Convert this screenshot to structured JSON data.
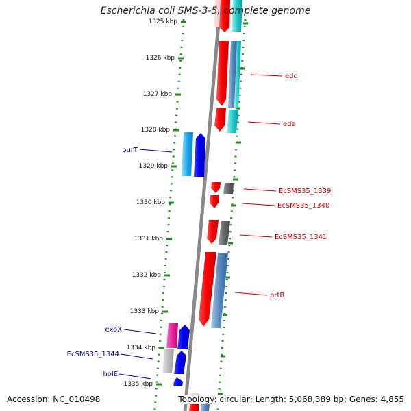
{
  "title": "Escherichia coli SMS-3-5, complete genome",
  "footer": {
    "accession": "Accession: NC_010498",
    "summary": "Topology: circular; Length: 5,068,389 bp; Genes: 4,855"
  },
  "colors": {
    "forward_gene": "#ff0000",
    "reverse_gene": "#0000ff",
    "backbone": "#888888",
    "tick": "#228b22",
    "forward_label": "#cc0000",
    "reverse_label": "#0000aa"
  },
  "kbp_labels": [
    "1325 kbp",
    "1326 kbp",
    "1327 kbp",
    "1328 kbp",
    "1329 kbp",
    "1330 kbp",
    "1331 kbp",
    "1332 kbp",
    "1333 kbp",
    "1334 kbp",
    "1335 kbp"
  ],
  "genes": [
    {
      "name": "edd",
      "strand": "forward"
    },
    {
      "name": "eda",
      "strand": "forward"
    },
    {
      "name": "purT",
      "strand": "reverse"
    },
    {
      "name": "EcSMS35_1339",
      "strand": "forward"
    },
    {
      "name": "EcSMS35_1340",
      "strand": "forward"
    },
    {
      "name": "EcSMS35_1341",
      "strand": "forward"
    },
    {
      "name": "prtB",
      "strand": "forward"
    },
    {
      "name": "exoX",
      "strand": "reverse"
    },
    {
      "name": "EcSMS35_1344",
      "strand": "reverse"
    },
    {
      "name": "holE",
      "strand": "reverse"
    }
  ]
}
